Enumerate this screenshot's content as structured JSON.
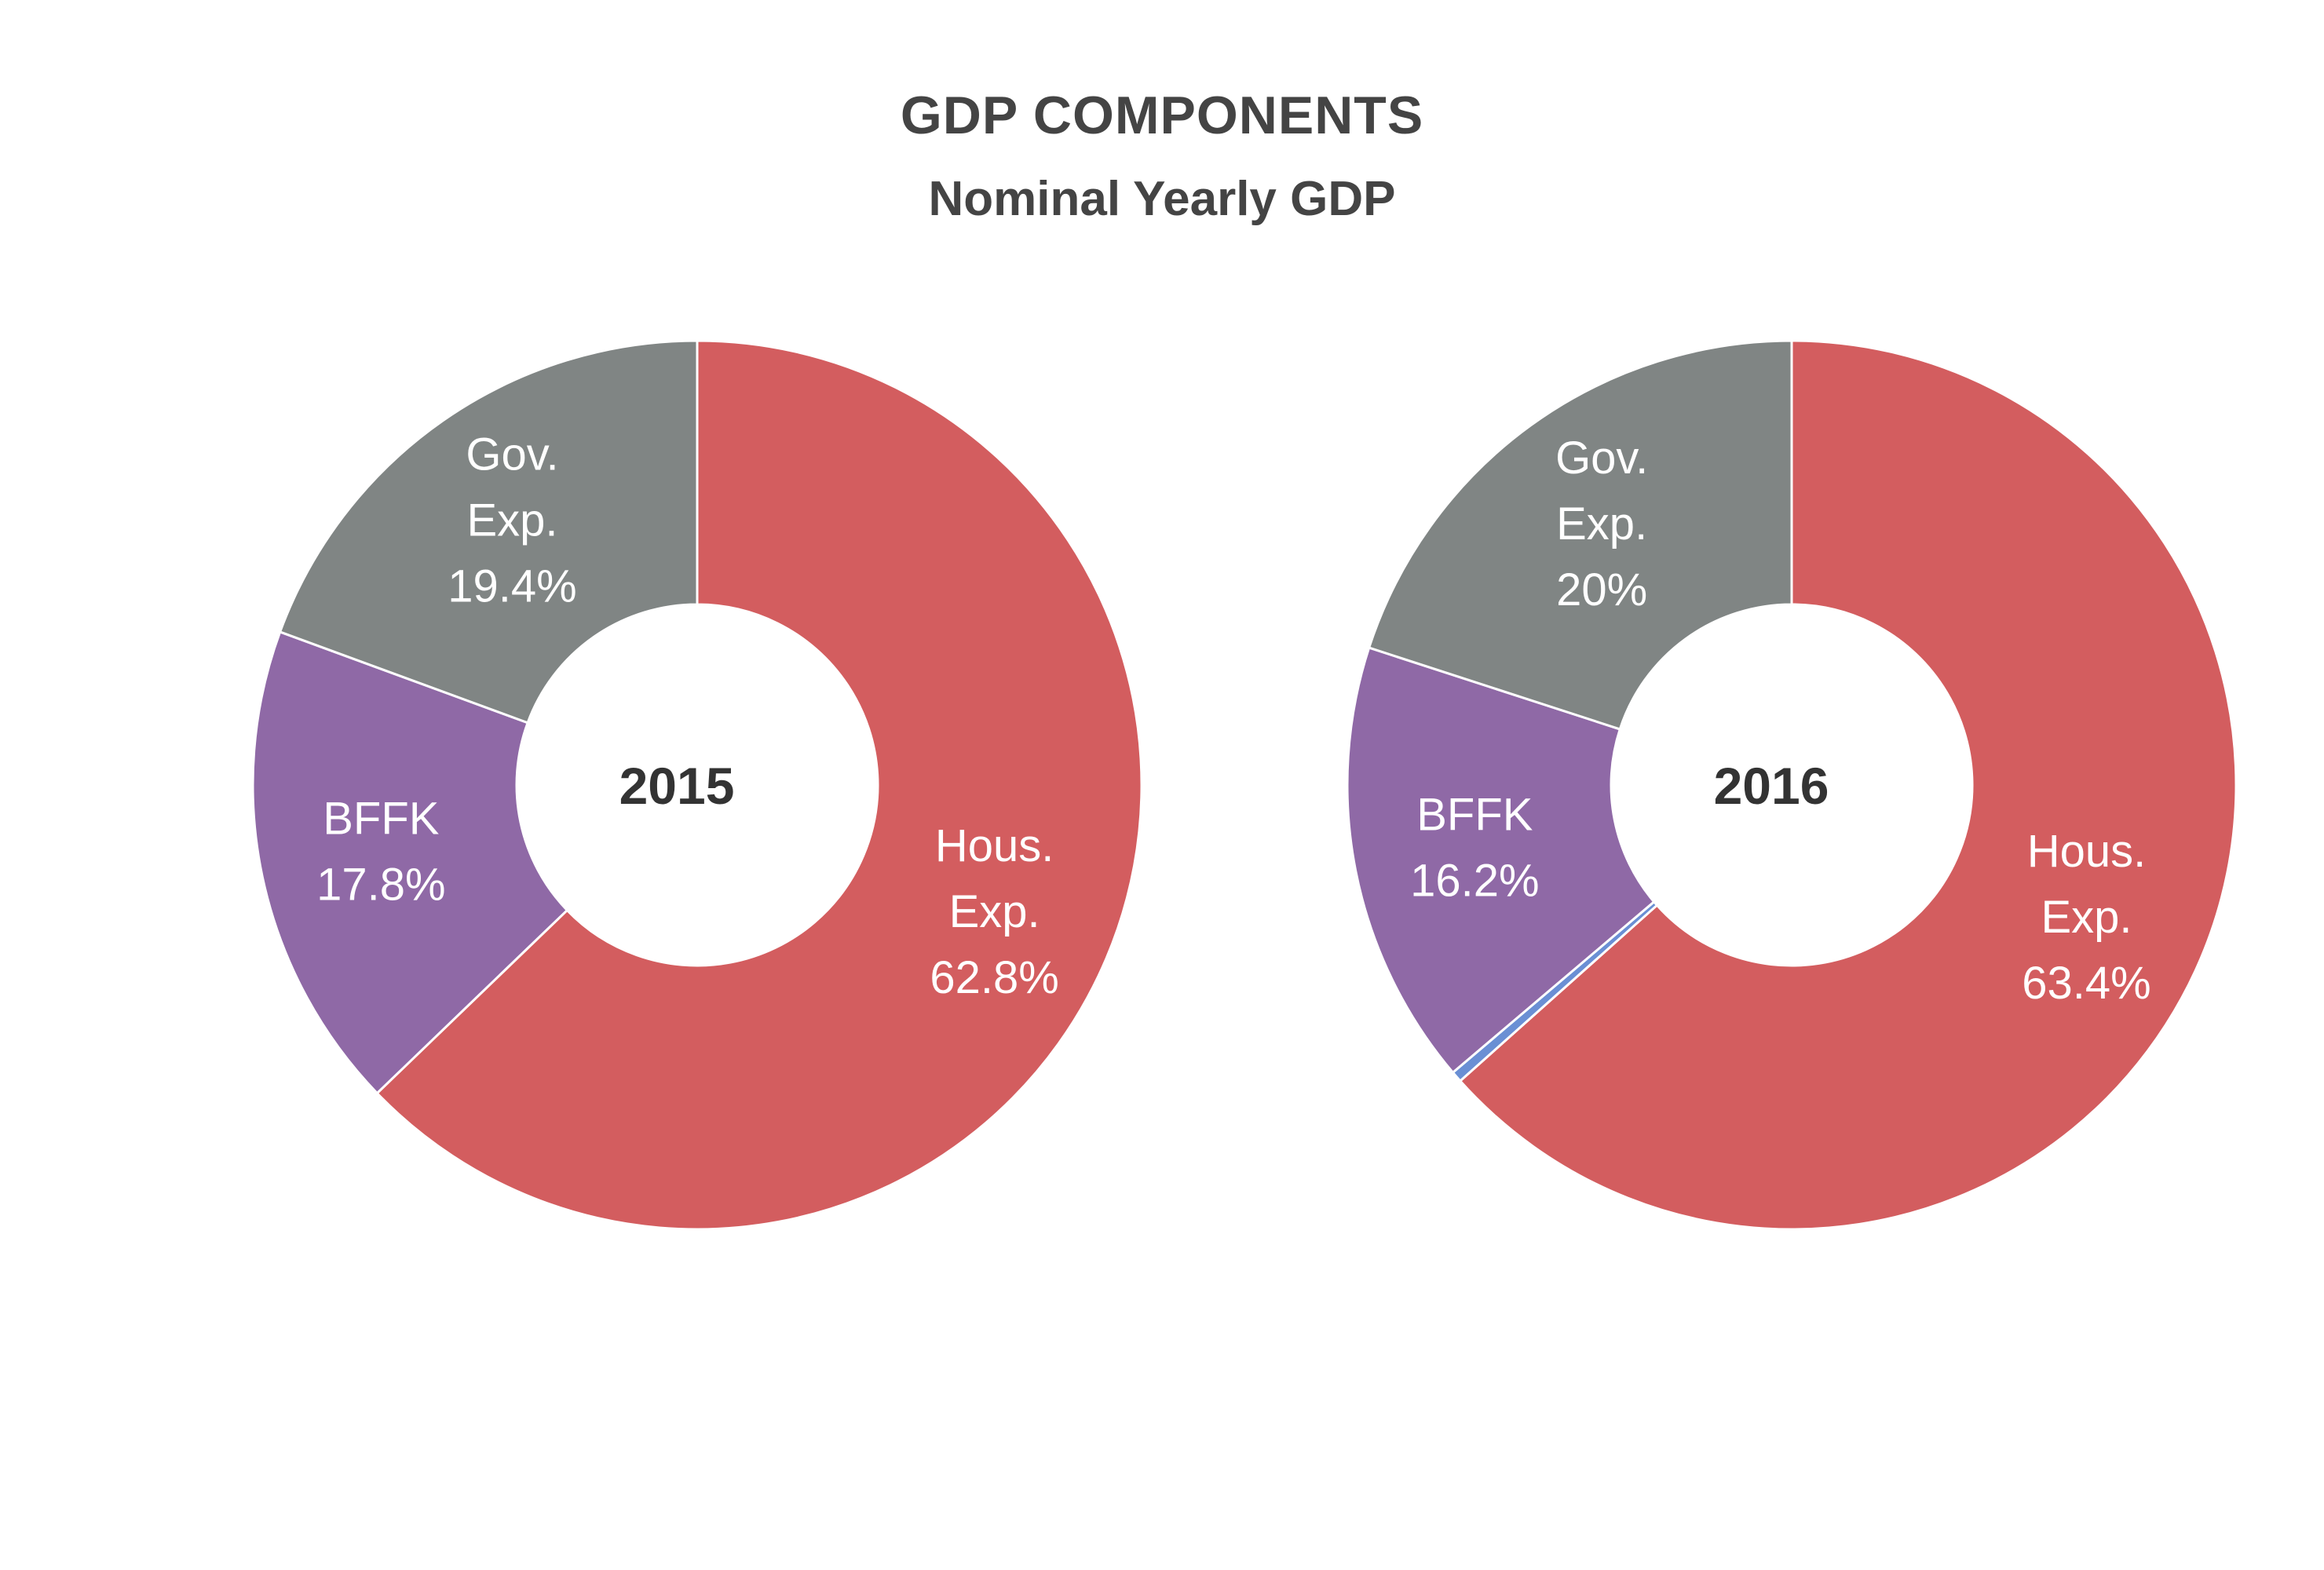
{
  "title": "GDP COMPONENTS",
  "subtitle": "Nominal Yearly GDP",
  "chart_data": [
    {
      "type": "pie",
      "hole": true,
      "center_label": "2015",
      "slices": [
        {
          "name": "Hous. Exp.",
          "label_lines": [
            "Hous.",
            "Exp.",
            "62.8%"
          ],
          "value": 62.8,
          "color": "#d35d5f"
        },
        {
          "name": "BFFK",
          "label_lines": [
            "BFFK",
            "17.8%"
          ],
          "value": 17.8,
          "color": "#8f69a6"
        },
        {
          "name": "Gov. Exp.",
          "label_lines": [
            "Gov.",
            "Exp.",
            "19.4%"
          ],
          "value": 19.4,
          "color": "#808584"
        }
      ]
    },
    {
      "type": "pie",
      "hole": true,
      "center_label": "2016",
      "slices": [
        {
          "name": "Hous. Exp.",
          "label_lines": [
            "Hous.",
            "Exp.",
            "63.4%"
          ],
          "value": 63.4,
          "color": "#d35d5f"
        },
        {
          "name": "",
          "label_lines": [],
          "value": 0.4,
          "color": "#6a8fd4"
        },
        {
          "name": "BFFK",
          "label_lines": [
            "BFFK",
            "16.2%"
          ],
          "value": 16.2,
          "color": "#8f69a6"
        },
        {
          "name": "Gov. Exp.",
          "label_lines": [
            "Gov.",
            "Exp.",
            "20%"
          ],
          "value": 20.0,
          "color": "#808584"
        }
      ]
    }
  ]
}
